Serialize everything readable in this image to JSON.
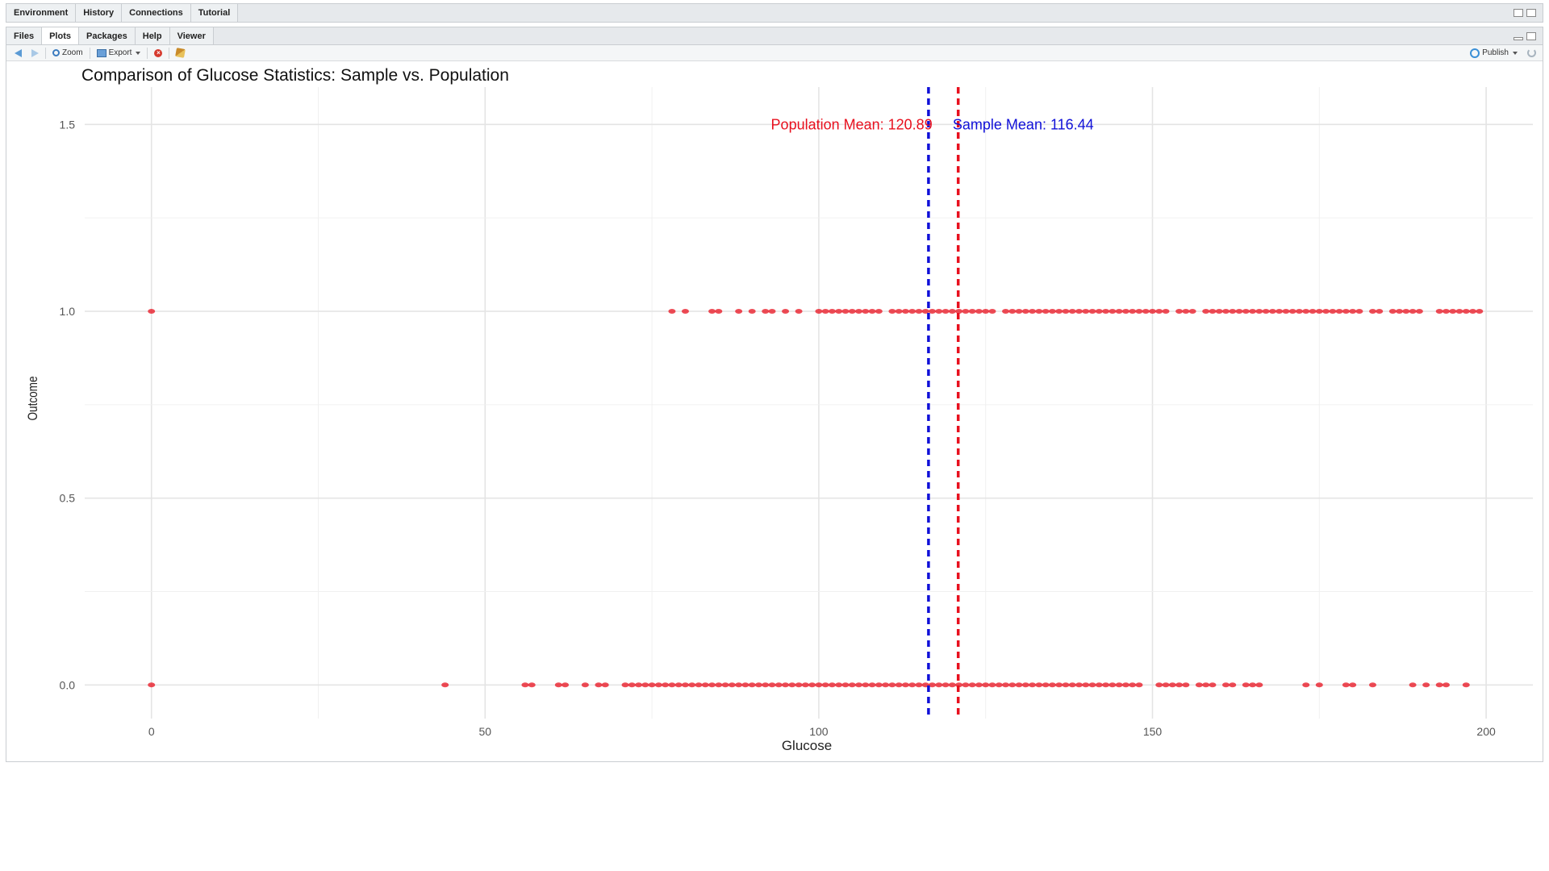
{
  "top_tabs": [
    "Environment",
    "History",
    "Connections",
    "Tutorial"
  ],
  "bottom_tabs": [
    "Files",
    "Plots",
    "Packages",
    "Help",
    "Viewer"
  ],
  "active_bottom_tab": "Plots",
  "toolbar": {
    "zoom_label": "Zoom",
    "export_label": "Export",
    "publish_label": "Publish"
  },
  "chart_data": {
    "type": "scatter",
    "title": "Comparison of Glucose Statistics: Sample vs. Population",
    "xlabel": "Glucose",
    "ylabel": "Outcome",
    "xlim": [
      -10,
      207
    ],
    "ylim": [
      -0.09,
      1.6
    ],
    "x_ticks": [
      0,
      50,
      100,
      150,
      200
    ],
    "y_ticks": [
      0.0,
      0.5,
      1.0,
      1.5
    ],
    "y_tick_labels": [
      "0.0",
      "0.5",
      "1.0",
      "1.5"
    ],
    "point_color": "#e8101e",
    "grid": true,
    "series": [
      {
        "values_y": 1,
        "x": [
          0,
          78,
          80,
          84,
          85,
          88,
          90,
          92,
          93,
          95,
          97,
          100,
          101,
          102,
          103,
          104,
          105,
          106,
          107,
          108,
          109,
          111,
          112,
          113,
          114,
          115,
          116,
          117,
          118,
          119,
          120,
          121,
          122,
          123,
          124,
          125,
          126,
          128,
          129,
          130,
          131,
          132,
          133,
          134,
          135,
          136,
          137,
          138,
          139,
          140,
          141,
          142,
          143,
          144,
          145,
          146,
          147,
          148,
          149,
          150,
          151,
          152,
          154,
          155,
          156,
          158,
          159,
          160,
          161,
          162,
          163,
          164,
          165,
          166,
          167,
          168,
          169,
          170,
          171,
          172,
          173,
          174,
          175,
          176,
          177,
          178,
          179,
          180,
          181,
          183,
          184,
          186,
          187,
          188,
          189,
          190,
          193,
          194,
          195,
          196,
          197,
          198,
          199
        ]
      },
      {
        "values_y": 0,
        "x": [
          0,
          44,
          56,
          57,
          61,
          62,
          65,
          67,
          68,
          71,
          72,
          73,
          74,
          75,
          76,
          77,
          78,
          79,
          80,
          81,
          82,
          83,
          84,
          85,
          86,
          87,
          88,
          89,
          90,
          91,
          92,
          93,
          94,
          95,
          96,
          97,
          98,
          99,
          100,
          101,
          102,
          103,
          104,
          105,
          106,
          107,
          108,
          109,
          110,
          111,
          112,
          113,
          114,
          115,
          116,
          117,
          118,
          119,
          120,
          121,
          122,
          123,
          124,
          125,
          126,
          127,
          128,
          129,
          130,
          131,
          132,
          133,
          134,
          135,
          136,
          137,
          138,
          139,
          140,
          141,
          142,
          143,
          144,
          145,
          146,
          147,
          148,
          151,
          152,
          153,
          154,
          155,
          157,
          158,
          159,
          161,
          162,
          164,
          165,
          166,
          173,
          175,
          179,
          180,
          183,
          189,
          191,
          193,
          194,
          197
        ]
      }
    ],
    "vlines": [
      {
        "label": "Population Mean: 120.89",
        "value": 120.89,
        "color": "#e8101e"
      },
      {
        "label": "Sample Mean: 116.44",
        "value": 116.44,
        "color": "#1010d8"
      }
    ],
    "annotation_y": 1.5
  }
}
